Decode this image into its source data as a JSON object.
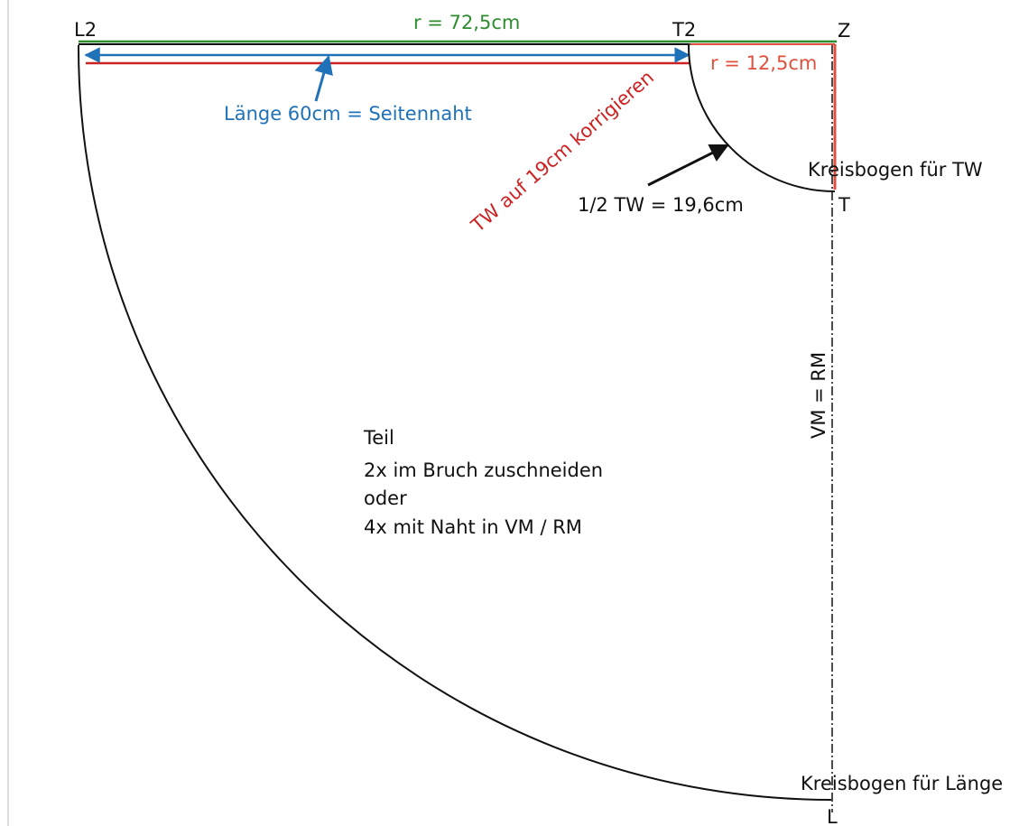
{
  "points": {
    "l2": "L2",
    "t2": "T2",
    "z": "Z",
    "t": "T",
    "l": "L"
  },
  "measures": {
    "outer_radius": "r = 72,5cm",
    "inner_radius": "r = 12,5cm",
    "length": "Länge 60cm = Seitennaht",
    "half_waist": "1/2 TW = 19,6cm"
  },
  "notes": {
    "correction": "TW auf 19cm korrigieren",
    "arc_waist": "Kreisbogen für TW",
    "arc_length": "Kreisbogen für Länge",
    "fold_line": "VM = RM"
  },
  "instructions": [
    "Teil",
    "2x im Bruch zuschneiden",
    "oder",
    "4x mit Naht in VM / RM"
  ],
  "colors": {
    "outline": "#111111",
    "outer_radius_line": "#2e8b2e",
    "inner_radius": "#e0503c",
    "length_arrow": "#1f72b8",
    "correction": "#cc2222"
  }
}
